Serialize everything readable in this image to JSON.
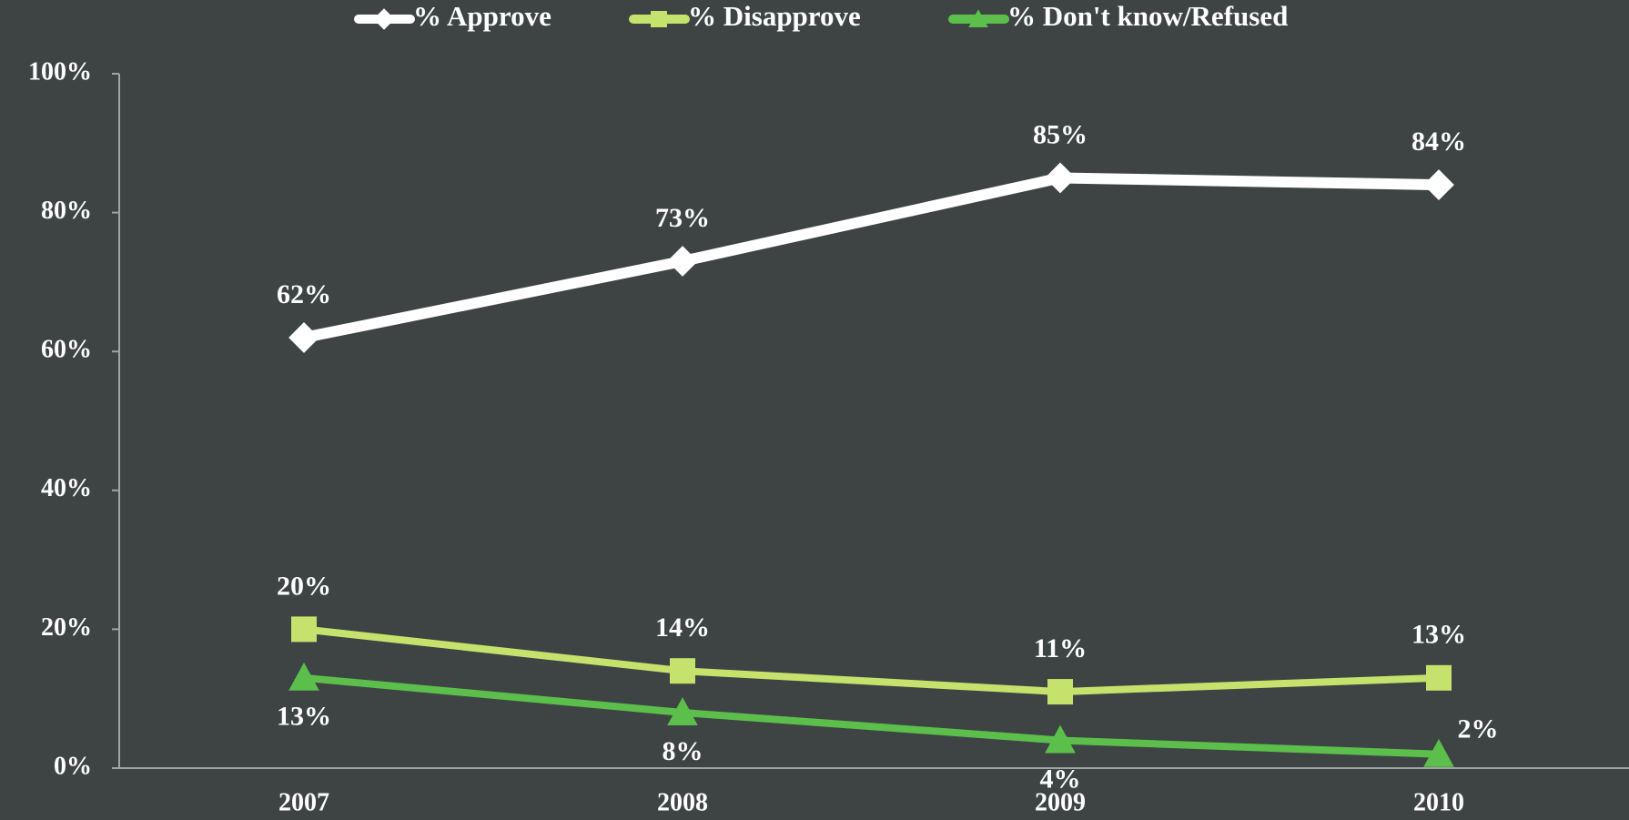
{
  "chart_data": {
    "type": "line",
    "categories": [
      "2007",
      "2008",
      "2009",
      "2010"
    ],
    "series": [
      {
        "name": "% Approve",
        "color": "#ffffff",
        "marker": "diamond",
        "values": [
          62,
          73,
          85,
          84
        ],
        "value_labels": [
          "62%",
          "73%",
          "85%",
          "84%"
        ]
      },
      {
        "name": "% Disapprove",
        "color": "#c5e26d",
        "marker": "square",
        "values": [
          20,
          14,
          11,
          13
        ],
        "value_labels": [
          "20%",
          "14%",
          "11%",
          "13%"
        ]
      },
      {
        "name": "% Don't know/Refused",
        "color": "#5cbf4c",
        "marker": "triangle",
        "values": [
          13,
          8,
          4,
          2
        ],
        "value_labels": [
          "13%",
          "8%",
          "4%",
          "2%"
        ]
      }
    ],
    "ylim": [
      0,
      100
    ],
    "yticks": [
      {
        "value": 0,
        "label": "0%"
      },
      {
        "value": 20,
        "label": "20%"
      },
      {
        "value": 40,
        "label": "40%"
      },
      {
        "value": 60,
        "label": "60%"
      },
      {
        "value": 80,
        "label": "80%"
      },
      {
        "value": 100,
        "label": "100%"
      }
    ],
    "legend": "top"
  }
}
